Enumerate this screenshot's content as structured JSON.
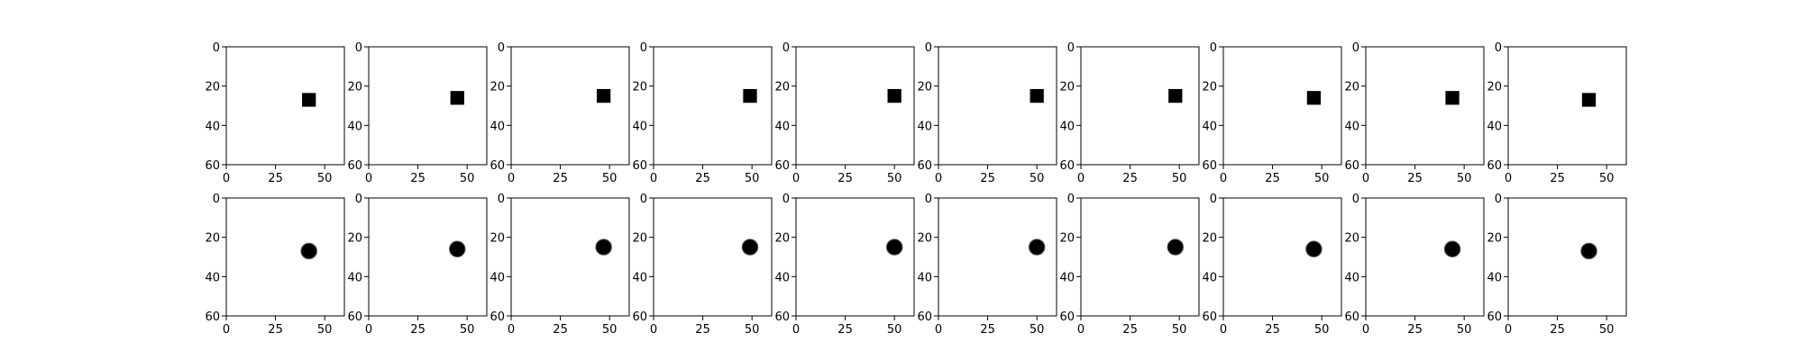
{
  "chart_data": {
    "type": "image-grid",
    "rows": 2,
    "cols": 10,
    "image_size": 60,
    "xlim": [
      0,
      60
    ],
    "ylim": [
      60,
      0
    ],
    "x_ticks": [
      0,
      25,
      50
    ],
    "y_ticks": [
      0,
      20,
      40,
      60
    ],
    "background_color": "#ffffff",
    "mark_color": "#000000",
    "top_row": {
      "shape": "square",
      "centers": [
        {
          "x": 42,
          "y": 27
        },
        {
          "x": 45,
          "y": 26
        },
        {
          "x": 47,
          "y": 25
        },
        {
          "x": 49,
          "y": 25
        },
        {
          "x": 50,
          "y": 25
        },
        {
          "x": 50,
          "y": 25
        },
        {
          "x": 48,
          "y": 25
        },
        {
          "x": 46,
          "y": 26
        },
        {
          "x": 44,
          "y": 26
        },
        {
          "x": 41,
          "y": 27
        }
      ],
      "size": 7
    },
    "bottom_row": {
      "shape": "circle",
      "centers": [
        {
          "x": 42,
          "y": 27
        },
        {
          "x": 45,
          "y": 26
        },
        {
          "x": 47,
          "y": 25
        },
        {
          "x": 49,
          "y": 25
        },
        {
          "x": 50,
          "y": 25
        },
        {
          "x": 50,
          "y": 25
        },
        {
          "x": 48,
          "y": 25
        },
        {
          "x": 46,
          "y": 26
        },
        {
          "x": 44,
          "y": 26
        },
        {
          "x": 41,
          "y": 27
        }
      ],
      "diameter": 8
    }
  }
}
